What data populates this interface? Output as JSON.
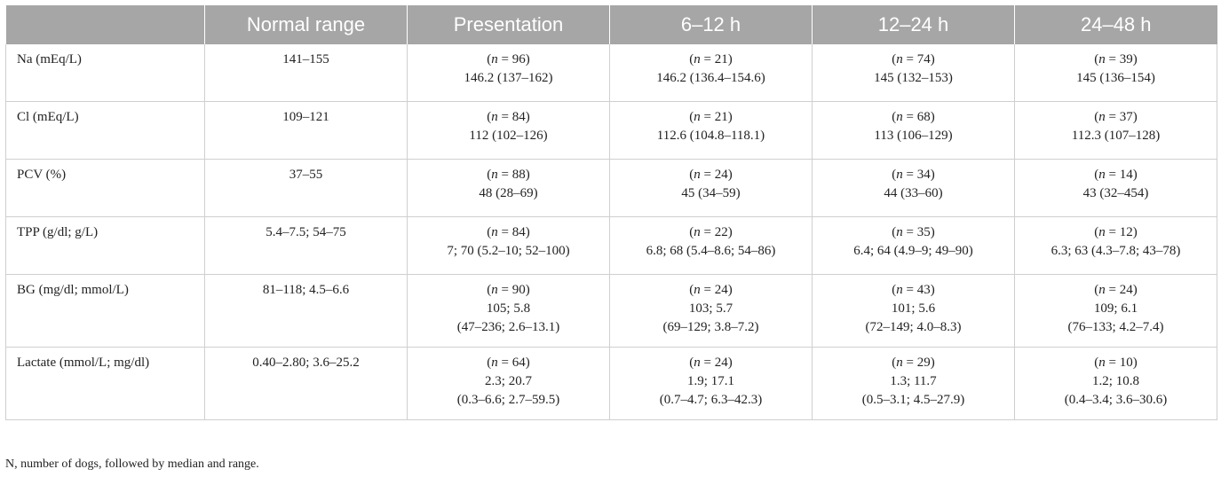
{
  "table": {
    "headers": [
      "",
      "Normal range",
      "Presentation",
      "6–12 h",
      "12–24 h",
      "24–48 h"
    ],
    "rows": [
      {
        "label": "Na (mEq/L)",
        "normal": "141–155",
        "cells": [
          {
            "n": "96",
            "lines": [
              "146.2 (137–162)"
            ]
          },
          {
            "n": "21",
            "lines": [
              "146.2 (136.4–154.6)"
            ]
          },
          {
            "n": "74",
            "lines": [
              "145 (132–153)"
            ]
          },
          {
            "n": "39",
            "lines": [
              "145 (136–154)"
            ]
          }
        ]
      },
      {
        "label": "Cl (mEq/L)",
        "normal": "109–121",
        "cells": [
          {
            "n": "84",
            "lines": [
              "112 (102–126)"
            ]
          },
          {
            "n": "21",
            "lines": [
              "112.6 (104.8–118.1)"
            ]
          },
          {
            "n": "68",
            "lines": [
              "113 (106–129)"
            ]
          },
          {
            "n": "37",
            "lines": [
              "112.3 (107–128)"
            ]
          }
        ]
      },
      {
        "label": "PCV (%)",
        "normal": "37–55",
        "cells": [
          {
            "n": "88",
            "lines": [
              "48 (28–69)"
            ]
          },
          {
            "n": "24",
            "lines": [
              "45 (34–59)"
            ]
          },
          {
            "n": "34",
            "lines": [
              "44 (33–60)"
            ]
          },
          {
            "n": "14",
            "lines": [
              "43 (32–454)"
            ]
          }
        ]
      },
      {
        "label": "TPP (g/dl; g/L)",
        "normal": "5.4–7.5; 54–75",
        "cells": [
          {
            "n": "84",
            "lines": [
              "7; 70 (5.2–10; 52–100)"
            ]
          },
          {
            "n": "22",
            "lines": [
              "6.8; 68 (5.4–8.6; 54–86)"
            ]
          },
          {
            "n": "35",
            "lines": [
              "6.4; 64 (4.9–9; 49–90)"
            ]
          },
          {
            "n": "12",
            "lines": [
              "6.3; 63 (4.3–7.8; 43–78)"
            ]
          }
        ]
      },
      {
        "label": "BG (mg/dl; mmol/L)",
        "normal": "81–118; 4.5–6.6",
        "cells": [
          {
            "n": "90",
            "lines": [
              "105; 5.8",
              "(47–236; 2.6–13.1)"
            ]
          },
          {
            "n": "24",
            "lines": [
              "103; 5.7",
              "(69–129; 3.8–7.2)"
            ]
          },
          {
            "n": "43",
            "lines": [
              "101; 5.6",
              "(72–149; 4.0–8.3)"
            ]
          },
          {
            "n": "24",
            "lines": [
              "109; 6.1",
              "(76–133; 4.2–7.4)"
            ]
          }
        ]
      },
      {
        "label": "Lactate (mmol/L; mg/dl)",
        "normal": "0.40–2.80; 3.6–25.2",
        "cells": [
          {
            "n": "64",
            "lines": [
              "2.3; 20.7",
              "(0.3–6.6; 2.7–59.5)"
            ]
          },
          {
            "n": "24",
            "lines": [
              "1.9; 17.1",
              "(0.7–4.7; 6.3–42.3)"
            ]
          },
          {
            "n": "29",
            "lines": [
              "1.3; 11.7",
              "(0.5–3.1; 4.5–27.9)"
            ]
          },
          {
            "n": "10",
            "lines": [
              "1.2; 10.8",
              "(0.4–3.4; 3.6–30.6)"
            ]
          }
        ]
      }
    ]
  },
  "footnote": "N, number of dogs, followed by median and range."
}
